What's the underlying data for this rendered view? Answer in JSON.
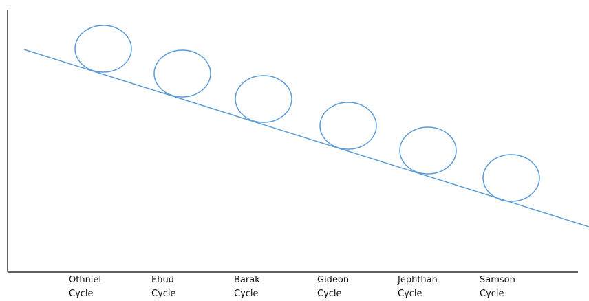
{
  "colors": {
    "axis": "#000000",
    "trend_line": "#5b9bd5",
    "circle": "#5b9bd5",
    "label_text": "#111111"
  },
  "cycles": [
    {
      "name": "Othniel",
      "suffix": "Cycle"
    },
    {
      "name": "Ehud",
      "suffix": "Cycle"
    },
    {
      "name": "Barak",
      "suffix": "Cycle"
    },
    {
      "name": "Gideon",
      "suffix": "Cycle"
    },
    {
      "name": "Jephthah",
      "suffix": "Cycle"
    },
    {
      "name": "Samson",
      "suffix": "Cycle"
    }
  ]
}
